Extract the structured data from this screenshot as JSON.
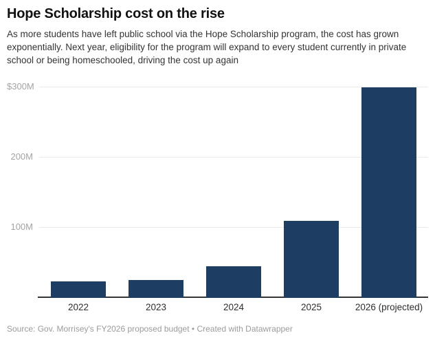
{
  "header": {
    "title": "Hope Scholarship cost on the rise",
    "description": "As more students have left public school via the Hope Scholarship program, the cost has grown exponentially. Next year, eligibility for the program will expand to every student currently in private school or being homeschooled, driving the cost up again"
  },
  "chart_data": {
    "type": "bar",
    "categories": [
      "2022",
      "2023",
      "2024",
      "2025",
      "2026 (projected)"
    ],
    "values": [
      24,
      25,
      45,
      110,
      300
    ],
    "title": "Hope Scholarship cost on the rise",
    "xlabel": "",
    "ylabel": "",
    "ylim": [
      0,
      312
    ],
    "y_ticks": [
      {
        "value": 100,
        "label": "100M"
      },
      {
        "value": 200,
        "label": "200M"
      },
      {
        "value": 300,
        "label": "$300M"
      }
    ],
    "grid": "horizontal",
    "legend": "none",
    "bar_color": "#1e3d62"
  },
  "footer": {
    "source_prefix": "Source:",
    "source": "Gov. Morrisey's FY2026 proposed budget",
    "separator": "•",
    "credit": "Created with Datawrapper"
  },
  "colors": {
    "bar": "#1e3d62",
    "gridline": "#e9e9e9",
    "axis_line": "#333333",
    "y_label": "#a3a3a3",
    "x_label": "#2e2e2e",
    "title_text": "#111111",
    "body_text": "#333333",
    "footer_text": "#9b9b9b"
  }
}
